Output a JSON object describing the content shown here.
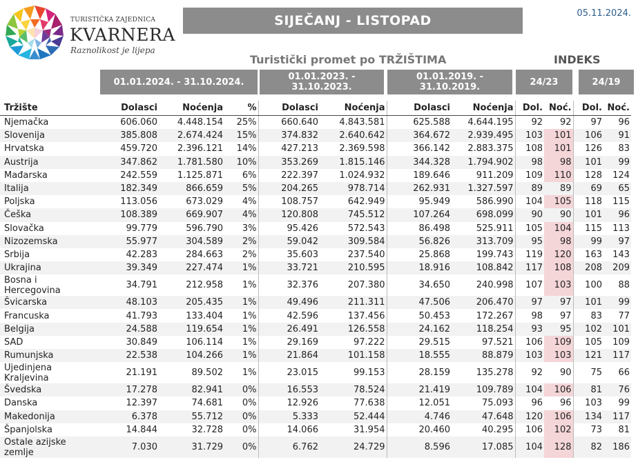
{
  "logo": {
    "line1": "TURISTIČKA ZAJEDNICA",
    "line2": "KVARNERA",
    "line3": "Raznolikost je lijepa"
  },
  "title": "SIJEČANJ - LISTOPAD",
  "date": "05.11.2024.",
  "subtitle": "Turistički promet po TRŽIŠTIMA",
  "indeks_label": "INDEKS",
  "periods": {
    "p2024": "01.01.2024. - 31.10.2024.",
    "p2023": "01.01.2023. - 31.10.2023.",
    "p2019": "01.01.2019. - 31.10.2019.",
    "i2423": "24/23",
    "i2419": "24/19"
  },
  "headers": [
    "Tržište",
    "Dolasci",
    "Noćenja",
    "%",
    "Dolasci",
    "Noćenja",
    "Dolasci",
    "Noćenja",
    "Dol.",
    "Noć.",
    "Dol.",
    "Noć."
  ],
  "rows": [
    [
      "Njemačka",
      "606.060",
      "4.448.154",
      "25%",
      "660.640",
      "4.843.581",
      "625.588",
      "4.644.195",
      "92",
      "92",
      "97",
      "96"
    ],
    [
      "Slovenija",
      "385.808",
      "2.674.424",
      "15%",
      "374.832",
      "2.640.642",
      "364.672",
      "2.939.495",
      "103",
      "101",
      "106",
      "91"
    ],
    [
      "Hrvatska",
      "459.720",
      "2.396.121",
      "14%",
      "427.213",
      "2.369.598",
      "366.142",
      "2.883.375",
      "108",
      "101",
      "126",
      "83"
    ],
    [
      "Austrija",
      "347.862",
      "1.781.580",
      "10%",
      "353.269",
      "1.815.146",
      "344.328",
      "1.794.902",
      "98",
      "98",
      "101",
      "99"
    ],
    [
      "Mađarska",
      "242.559",
      "1.125.871",
      "6%",
      "222.397",
      "1.024.932",
      "189.646",
      "911.209",
      "109",
      "110",
      "128",
      "124"
    ],
    [
      "Italija",
      "182.349",
      "866.659",
      "5%",
      "204.265",
      "978.714",
      "262.931",
      "1.327.597",
      "89",
      "89",
      "69",
      "65"
    ],
    [
      "Poljska",
      "113.056",
      "673.029",
      "4%",
      "108.757",
      "642.949",
      "95.949",
      "586.990",
      "104",
      "105",
      "118",
      "115"
    ],
    [
      "Češka",
      "108.389",
      "669.907",
      "4%",
      "120.808",
      "745.512",
      "107.264",
      "698.099",
      "90",
      "90",
      "101",
      "96"
    ],
    [
      "Slovačka",
      "99.779",
      "596.790",
      "3%",
      "95.426",
      "572.543",
      "86.498",
      "525.911",
      "105",
      "104",
      "115",
      "113"
    ],
    [
      "Nizozemska",
      "55.977",
      "304.589",
      "2%",
      "59.042",
      "309.584",
      "56.826",
      "313.709",
      "95",
      "98",
      "99",
      "97"
    ],
    [
      "Srbija",
      "42.283",
      "284.663",
      "2%",
      "35.603",
      "237.540",
      "25.868",
      "199.743",
      "119",
      "120",
      "163",
      "143"
    ],
    [
      "Ukrajina",
      "39.349",
      "227.474",
      "1%",
      "33.721",
      "210.595",
      "18.916",
      "108.842",
      "117",
      "108",
      "208",
      "209"
    ],
    [
      "Bosna i Hercegovina",
      "34.791",
      "212.958",
      "1%",
      "32.376",
      "207.380",
      "34.650",
      "240.998",
      "107",
      "103",
      "100",
      "88"
    ],
    [
      "Švicarska",
      "48.103",
      "205.435",
      "1%",
      "49.496",
      "211.311",
      "47.506",
      "206.470",
      "97",
      "97",
      "101",
      "99"
    ],
    [
      "Francuska",
      "41.793",
      "133.404",
      "1%",
      "42.596",
      "137.456",
      "50.453",
      "172.267",
      "98",
      "97",
      "83",
      "77"
    ],
    [
      "Belgija",
      "24.588",
      "119.654",
      "1%",
      "26.491",
      "126.558",
      "24.162",
      "118.254",
      "93",
      "95",
      "102",
      "101"
    ],
    [
      "SAD",
      "30.849",
      "106.114",
      "1%",
      "29.169",
      "97.222",
      "29.515",
      "97.521",
      "106",
      "109",
      "105",
      "109"
    ],
    [
      "Rumunjska",
      "22.538",
      "104.266",
      "1%",
      "21.864",
      "101.158",
      "18.555",
      "88.879",
      "103",
      "103",
      "121",
      "117"
    ],
    [
      "Ujedinjena Kraljevina",
      "21.191",
      "89.502",
      "1%",
      "23.015",
      "99.153",
      "28.159",
      "135.278",
      "92",
      "90",
      "75",
      "66"
    ],
    [
      "Švedska",
      "17.278",
      "82.941",
      "0%",
      "16.553",
      "78.524",
      "21.419",
      "109.789",
      "104",
      "106",
      "81",
      "76"
    ],
    [
      "Danska",
      "12.397",
      "74.681",
      "0%",
      "12.926",
      "77.638",
      "12.051",
      "75.093",
      "96",
      "96",
      "103",
      "99"
    ],
    [
      "Makedonija",
      "6.378",
      "55.712",
      "0%",
      "5.333",
      "52.444",
      "4.746",
      "47.648",
      "120",
      "106",
      "134",
      "117"
    ],
    [
      "Španjolska",
      "14.844",
      "32.728",
      "0%",
      "14.066",
      "31.954",
      "20.460",
      "40.295",
      "106",
      "102",
      "73",
      "81"
    ],
    [
      "Ostale azijske zemlje",
      "7.030",
      "31.729",
      "0%",
      "6.762",
      "24.729",
      "8.596",
      "17.085",
      "104",
      "128",
      "82",
      "186"
    ]
  ],
  "highlight_color": "#f4d5d8",
  "highlighted_noc_2423": [
    false,
    true,
    true,
    true,
    true,
    false,
    true,
    false,
    true,
    true,
    true,
    true,
    true,
    false,
    false,
    false,
    true,
    true,
    false,
    true,
    false,
    true,
    true,
    true
  ]
}
